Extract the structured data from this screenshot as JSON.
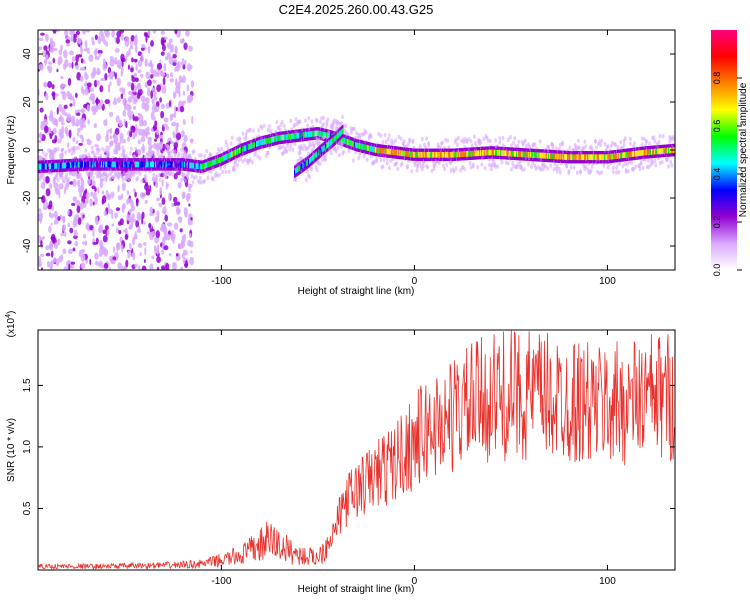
{
  "figure_title": "C2E4.2025.260.00.43.G25",
  "chart_data": [
    {
      "type": "heatmap",
      "title": "C2E4.2025.260.00.43.G25",
      "xlabel": "Height of straight line (km)",
      "ylabel": "Frequency (Hz)",
      "xlim": [
        -195,
        135
      ],
      "ylim": [
        -50,
        50
      ],
      "xticks": [
        -100,
        0,
        100
      ],
      "xtick_labels": [
        "-100",
        "0",
        "100"
      ],
      "yticks": [
        -40,
        -20,
        0,
        20,
        40
      ],
      "ytick_labels": [
        "-40",
        "-20",
        "0",
        "20",
        "40"
      ],
      "colorbar": {
        "label": "Normalized spectral amplitude",
        "range": [
          0,
          1
        ],
        "ticks": [
          0,
          0.2,
          0.4,
          0.6,
          0.8
        ],
        "tick_labels": [
          "0.0",
          "0.2",
          "0.4",
          "0.6",
          "0.8"
        ],
        "colors": [
          "#ffffff",
          "#d9a8ff",
          "#9400d3",
          "#0000ff",
          "#00ffff",
          "#00ff00",
          "#ffff00",
          "#ff8000",
          "#ff0000",
          "#ff0080"
        ]
      },
      "main_trace": [
        {
          "x": -195,
          "y": -7
        },
        {
          "x": -170,
          "y": -6
        },
        {
          "x": -150,
          "y": -6
        },
        {
          "x": -120,
          "y": -6
        },
        {
          "x": -110,
          "y": -7
        },
        {
          "x": -100,
          "y": -4
        },
        {
          "x": -90,
          "y": 0
        },
        {
          "x": -80,
          "y": 3
        },
        {
          "x": -70,
          "y": 5
        },
        {
          "x": -60,
          "y": 6
        },
        {
          "x": -50,
          "y": 7
        },
        {
          "x": -40,
          "y": 5
        },
        {
          "x": -30,
          "y": 2
        },
        {
          "x": -20,
          "y": 0
        },
        {
          "x": -10,
          "y": -1
        },
        {
          "x": 0,
          "y": -2
        },
        {
          "x": 20,
          "y": -2
        },
        {
          "x": 40,
          "y": -1
        },
        {
          "x": 60,
          "y": -2
        },
        {
          "x": 80,
          "y": -3
        },
        {
          "x": 100,
          "y": -3
        },
        {
          "x": 120,
          "y": -1
        },
        {
          "x": 135,
          "y": 0
        }
      ],
      "secondary_trace": [
        {
          "x": -62,
          "y": -9
        },
        {
          "x": -55,
          "y": -5
        },
        {
          "x": -48,
          "y": 0
        },
        {
          "x": -42,
          "y": 4
        },
        {
          "x": -37,
          "y": 8
        }
      ]
    },
    {
      "type": "line",
      "xlabel": "Height of straight line (km)",
      "ylabel": "SNR (10 * v/v)",
      "yscale_label": "(x10",
      "yscale_exponent": "4",
      "yscale_suffix": ")",
      "xlim": [
        -195,
        135
      ],
      "ylim": [
        0,
        1.95
      ],
      "xticks": [
        -100,
        0,
        100
      ],
      "xtick_labels": [
        "-100",
        "0",
        "100"
      ],
      "yticks": [
        0.5,
        1.0,
        1.5
      ],
      "ytick_labels": [
        "0.5",
        "1.0",
        "1.5"
      ],
      "color": "#e8312c",
      "series": [
        {
          "name": "SNR",
          "x": [
            -195,
            -160,
            -125,
            -110,
            -100,
            -90,
            -80,
            -75,
            -70,
            -60,
            -50,
            -42,
            -36,
            -30,
            -24,
            -18,
            -12,
            -6,
            0,
            8,
            16,
            24,
            32,
            40,
            50,
            60,
            70,
            80,
            90,
            100,
            110,
            120,
            135
          ],
          "y": [
            0.03,
            0.03,
            0.04,
            0.05,
            0.08,
            0.12,
            0.2,
            0.25,
            0.2,
            0.12,
            0.1,
            0.3,
            0.55,
            0.65,
            0.72,
            0.8,
            0.85,
            0.95,
            1.05,
            1.15,
            1.22,
            1.3,
            1.36,
            1.4,
            1.42,
            1.43,
            1.4,
            1.38,
            1.35,
            1.34,
            1.36,
            1.4,
            1.42
          ]
        }
      ]
    }
  ]
}
